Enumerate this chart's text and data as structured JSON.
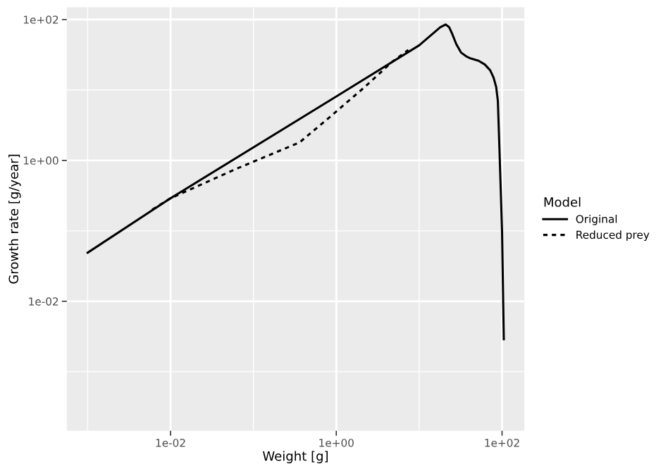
{
  "chart_data": {
    "type": "line",
    "xlabel": "Weight [g]",
    "ylabel": "Growth rate [g/year]",
    "legend_title": "Model",
    "legend": "right",
    "log": "xy",
    "grid": true,
    "xlim": [
      0.00056,
      186
    ],
    "ylim": [
      0.000145,
      150
    ],
    "xticks": [
      {
        "value": 0.001,
        "label": null
      },
      {
        "value": 0.01,
        "label": "1e-02"
      },
      {
        "value": 0.1,
        "label": null
      },
      {
        "value": 1,
        "label": "1e+00"
      },
      {
        "value": 10,
        "label": null
      },
      {
        "value": 100,
        "label": "1e+02"
      }
    ],
    "yticks": [
      {
        "value": 0.001,
        "label": null
      },
      {
        "value": 0.01,
        "label": "1e-02"
      },
      {
        "value": 0.1,
        "label": null
      },
      {
        "value": 1,
        "label": "1e+00"
      },
      {
        "value": 10,
        "label": null
      },
      {
        "value": 100,
        "label": "1e+02"
      }
    ],
    "series": [
      {
        "name": "Original",
        "color": "#000000",
        "line_style": "solid",
        "x": [
          0.001,
          0.01,
          1,
          10,
          18,
          20.8,
          23,
          25,
          28,
          32,
          37,
          42,
          52,
          62,
          72,
          79,
          85,
          89,
          93,
          100,
          105
        ],
        "values": [
          0.049,
          0.29,
          8.1,
          43,
          78,
          85,
          78,
          63,
          45,
          34,
          30,
          28,
          26,
          23,
          19,
          15,
          11,
          7,
          1.5,
          0.1,
          0.0029
        ]
      },
      {
        "name": "Reduced prey",
        "color": "#000000",
        "line_style": "dashed",
        "x": [
          0.006,
          0.01,
          0.059,
          0.36,
          0.79,
          2.2,
          4.7,
          7.4
        ],
        "values": [
          0.2,
          0.29,
          0.74,
          1.8,
          3.9,
          11,
          25,
          37
        ]
      }
    ]
  }
}
